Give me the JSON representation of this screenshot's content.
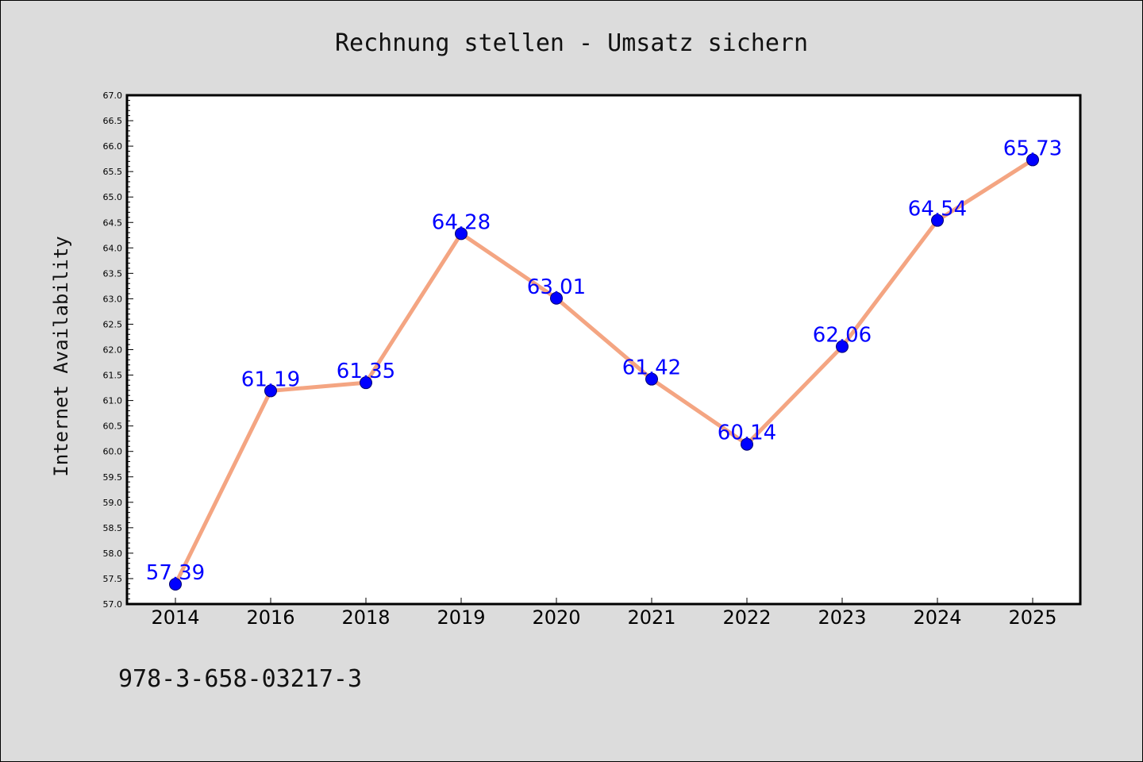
{
  "chart_data": {
    "type": "line",
    "title": "Rechnung stellen - Umsatz sichern",
    "ylabel": "Internet Availability",
    "xlabel": "",
    "x": [
      "2014",
      "2016",
      "2018",
      "2019",
      "2020",
      "2021",
      "2022",
      "2023",
      "2024",
      "2025"
    ],
    "series": [
      {
        "values": [
          57.39,
          61.19,
          61.35,
          64.28,
          63.01,
          61.42,
          60.14,
          62.06,
          64.54,
          65.73
        ],
        "data_labels": [
          "57.39",
          "61.19",
          "61.35",
          "64.28",
          "63.01",
          "61.42",
          "60.14",
          "62.06",
          "64.54",
          "65.73"
        ],
        "line_color": "#f4a582",
        "marker_color": "#0000ff"
      }
    ],
    "ylim": [
      57.0,
      67.0
    ],
    "ytick_labels": [
      "57.0",
      "57.5",
      "58.0",
      "58.5",
      "59.0",
      "59.5",
      "60.0",
      "60.5",
      "61.0",
      "61.5",
      "62.0",
      "62.5",
      "63.0",
      "63.5",
      "64.0",
      "64.5",
      "65.0",
      "65.5",
      "66.0",
      "66.5",
      "67.0"
    ],
    "grid": false,
    "legend": "none"
  },
  "footnote": "978-3-658-03217-3",
  "colors": {
    "background": "#dcdcdc",
    "plot_background": "#ffffff",
    "label_color": "#0000ff"
  }
}
